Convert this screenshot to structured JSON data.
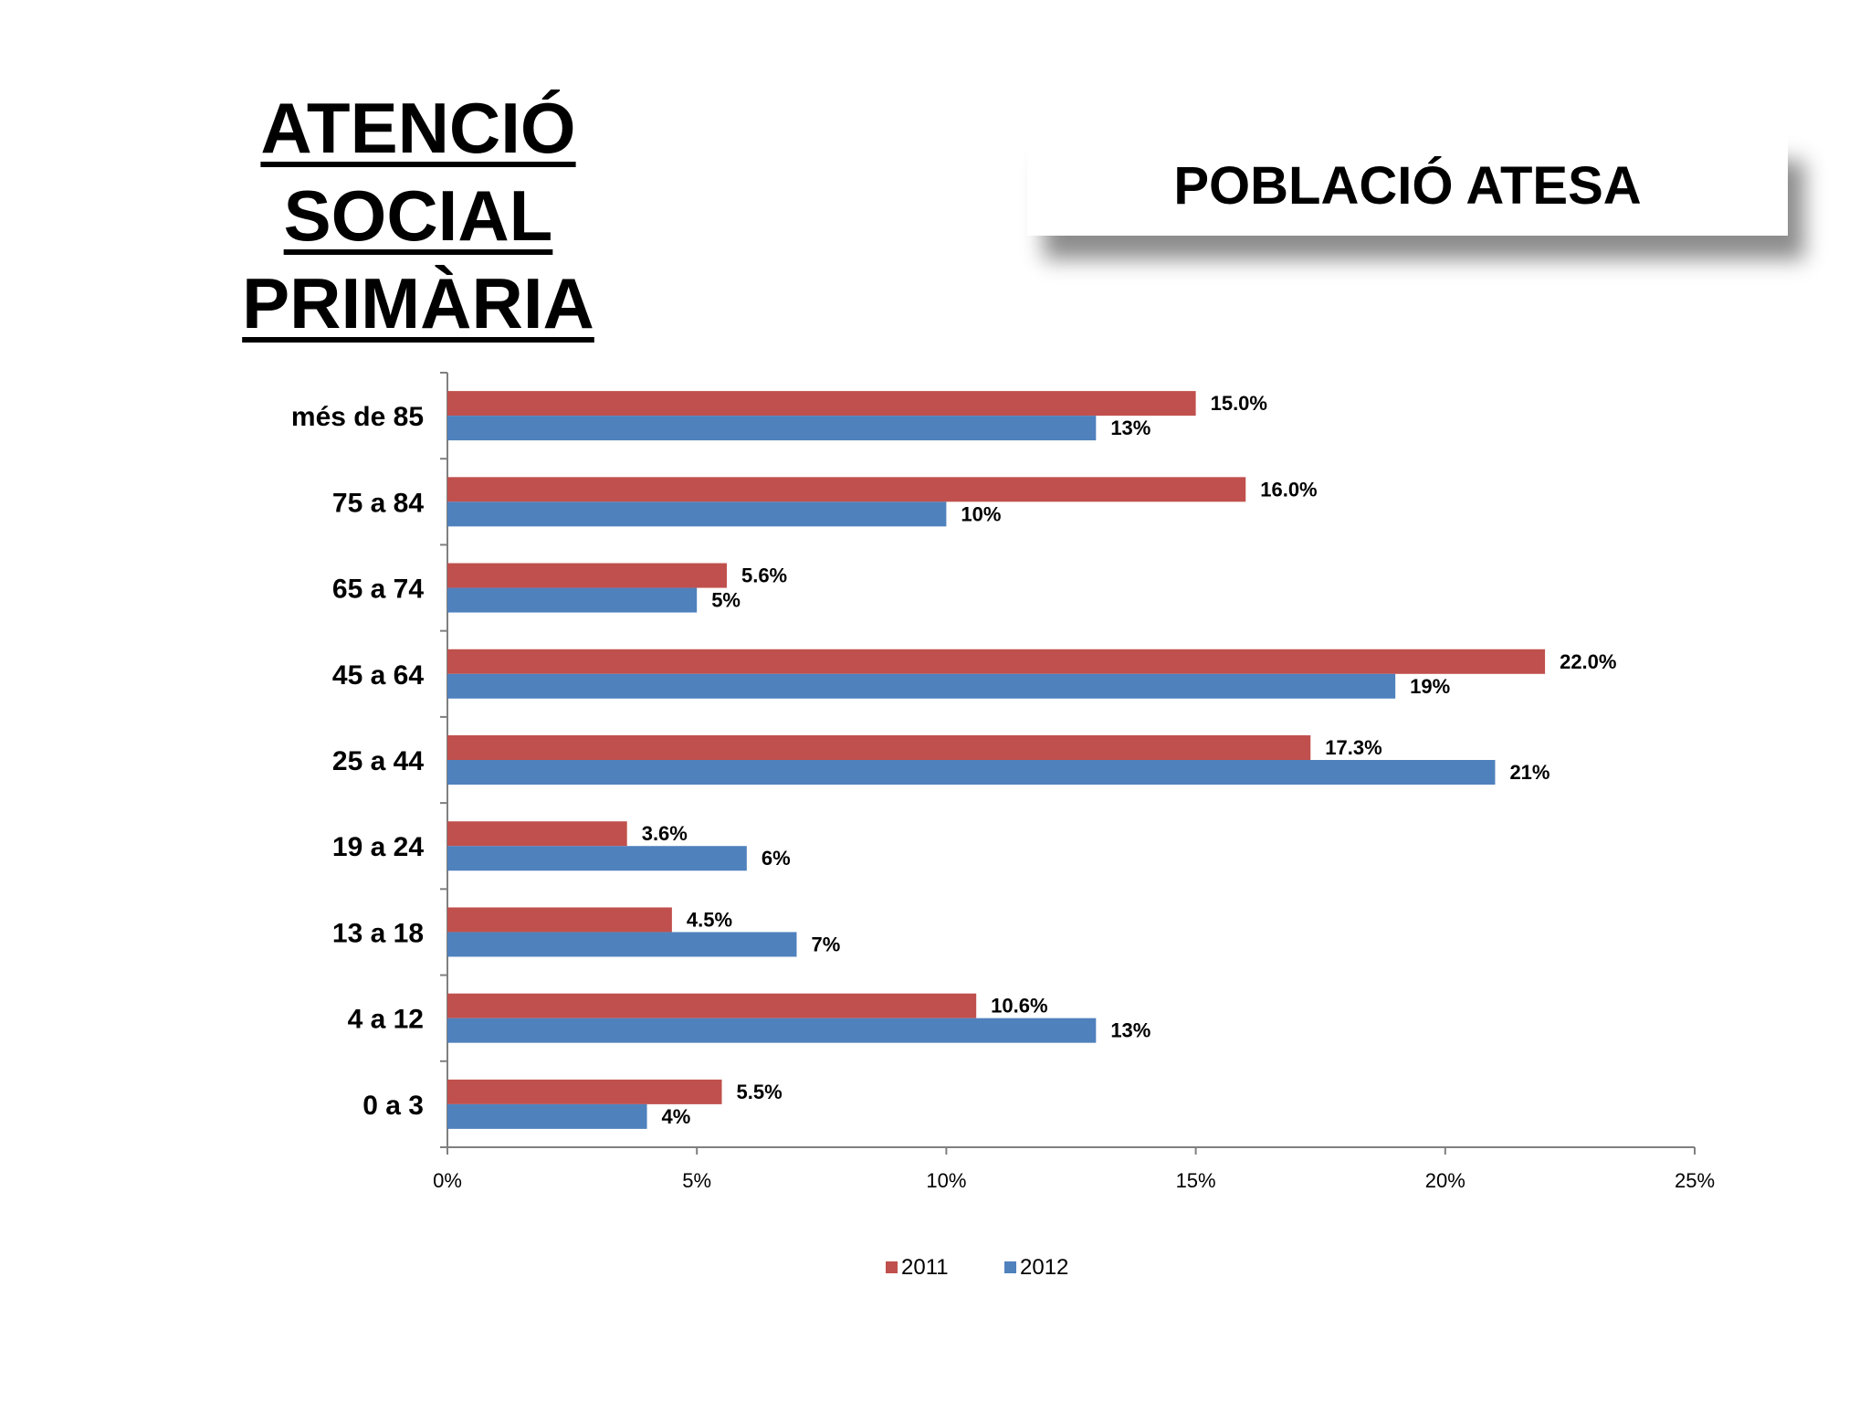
{
  "slide": {
    "title_line1": "ATENCIÓ SOCIAL",
    "title_line2": "PRIMÀRIA",
    "subtitle": "POBLACIÓ ATESA"
  },
  "chart_data": {
    "type": "bar",
    "orientation": "horizontal",
    "categories": [
      "més de 85",
      "75 a 84",
      "65 a 74",
      "45 a 64",
      "25 a 44",
      "19 a 24",
      "13 a 18",
      "4 a 12",
      "0 a 3"
    ],
    "series": [
      {
        "name": "2011",
        "color": "#C0504D",
        "values": [
          15.0,
          16.0,
          5.6,
          22.0,
          17.3,
          3.6,
          4.5,
          10.6,
          5.5
        ],
        "labels": [
          "15.0%",
          "16.0%",
          "5.6%",
          "22.0%",
          "17.3%",
          "3.6%",
          "4.5%",
          "10.6%",
          "5.5%"
        ]
      },
      {
        "name": "2012",
        "color": "#4F81BD",
        "values": [
          13,
          10,
          5,
          19,
          21,
          6,
          7,
          13,
          4
        ],
        "labels": [
          "13%",
          "10%",
          "5%",
          "19%",
          "21%",
          "6%",
          "7%",
          "13%",
          "4%"
        ]
      }
    ],
    "xlim": [
      0,
      25
    ],
    "xticks": [
      0,
      5,
      10,
      15,
      20,
      25
    ],
    "xtick_labels": [
      "0%",
      "5%",
      "10%",
      "15%",
      "20%",
      "25%"
    ],
    "grid": false,
    "legend": "bottom"
  }
}
